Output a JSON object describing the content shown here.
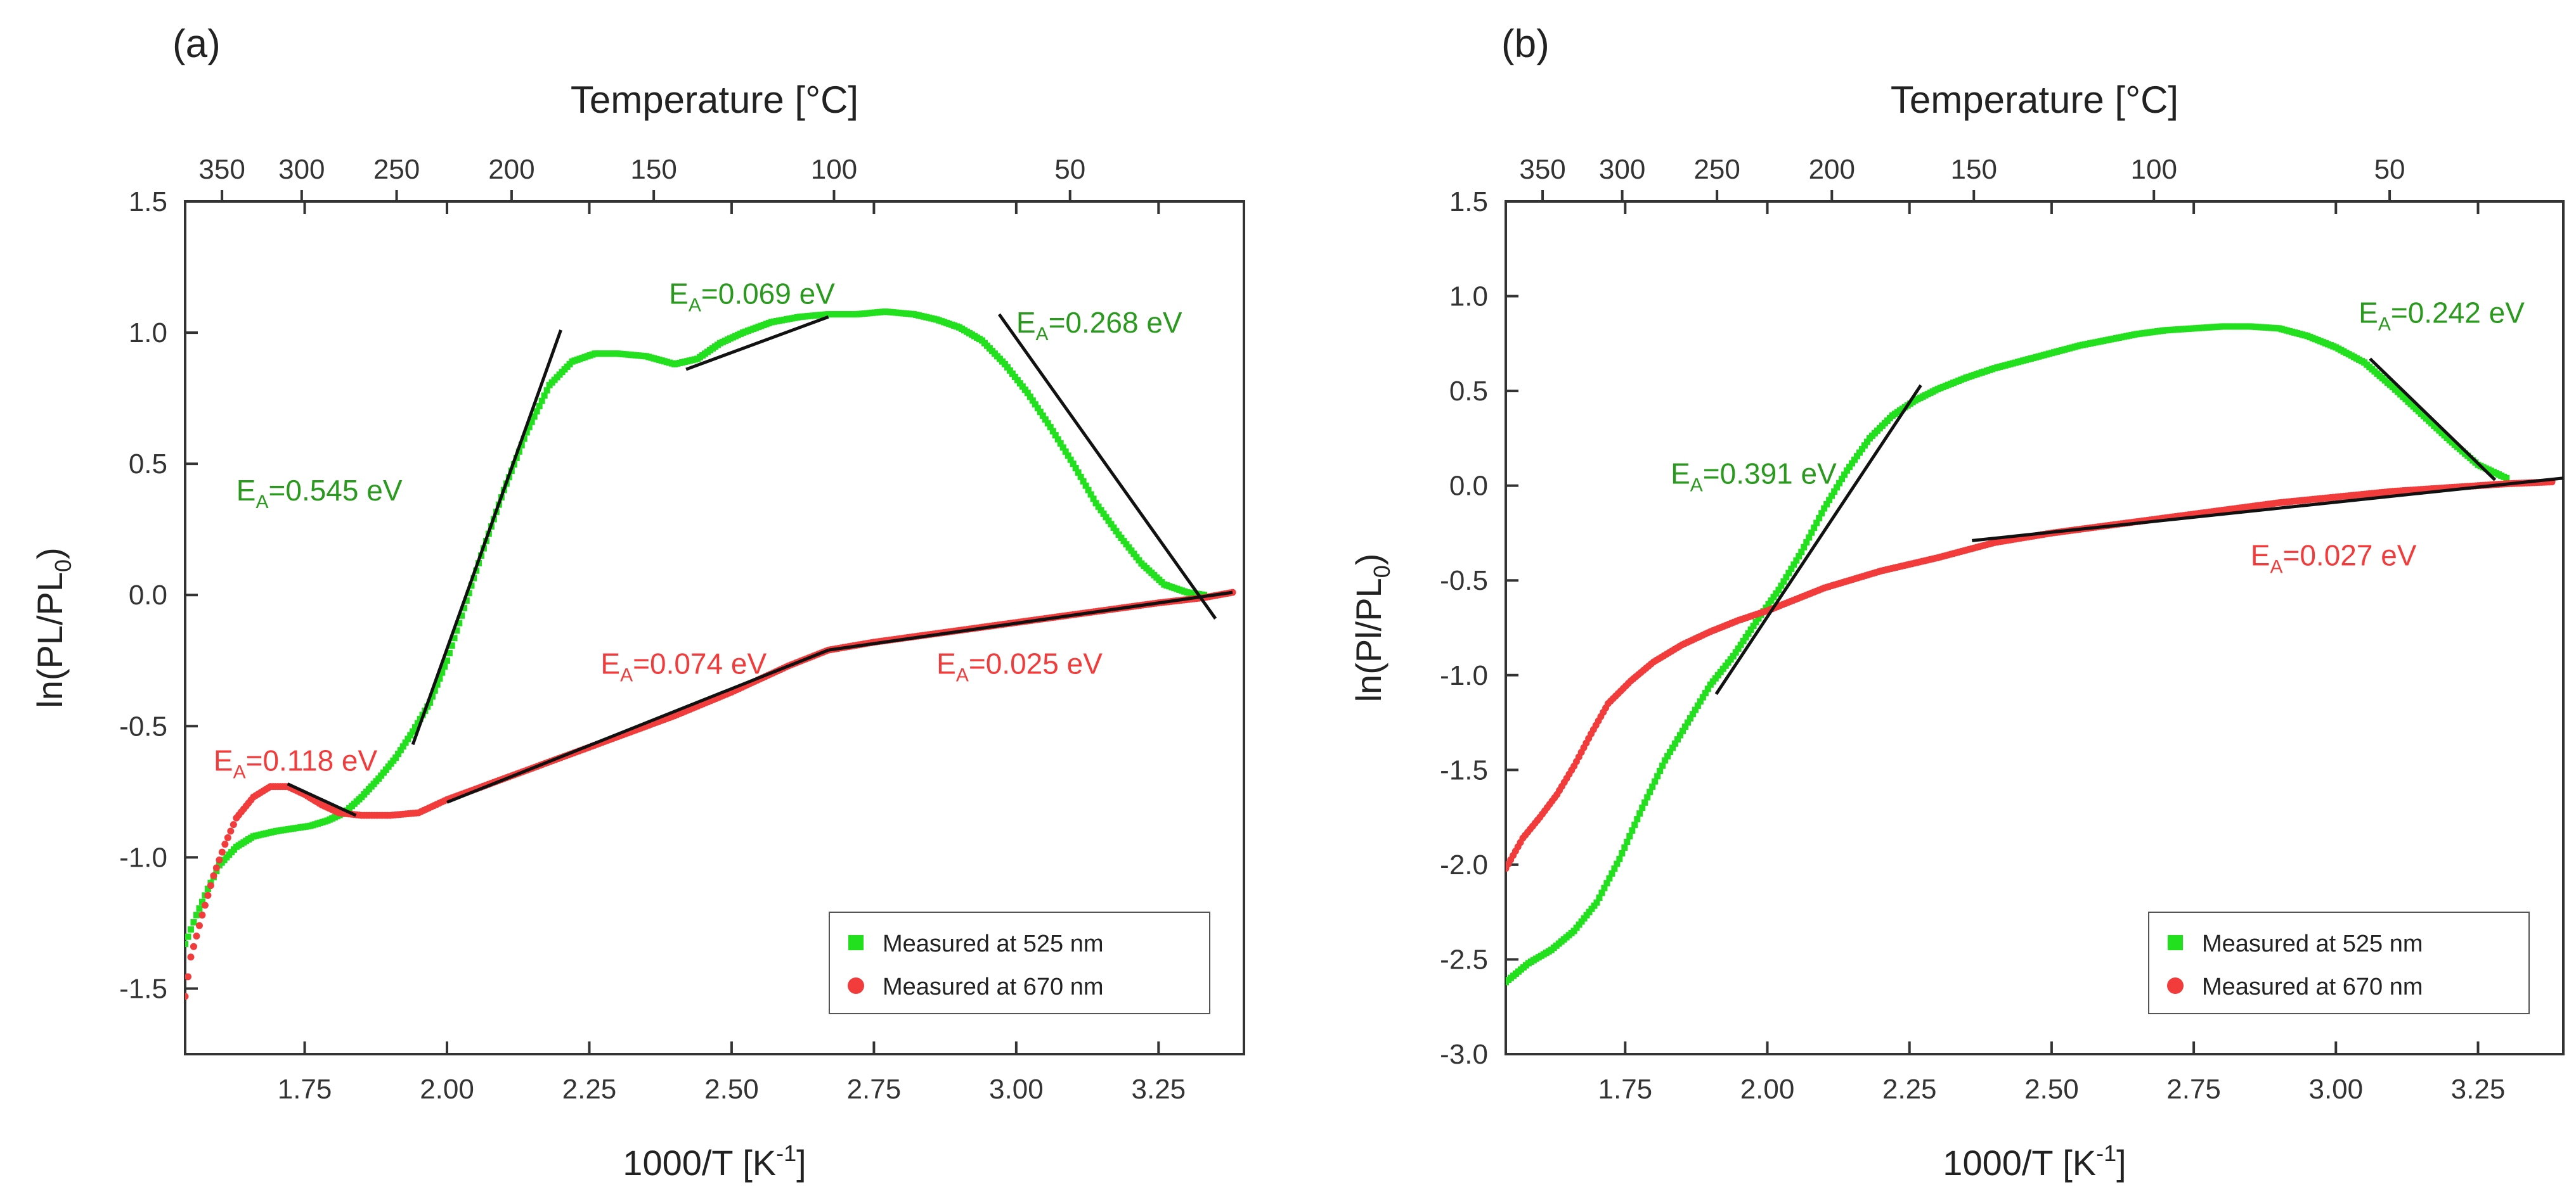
{
  "chart_data": [
    {
      "type": "scatter",
      "panel_label": "(a)",
      "xlabel": "1000/T [K",
      "xlabel_sup": "-1",
      "xlabel_end": "]",
      "ylabel": "ln(PL/PL",
      "ylabel_sub": "0",
      "ylabel_end": ")",
      "top_axis_label": "Temperature [°C]",
      "xlim": [
        1.54,
        3.4
      ],
      "ylim": [
        -1.75,
        1.5
      ],
      "xticks": [
        1.75,
        2.0,
        2.25,
        2.5,
        2.75,
        3.0,
        3.25
      ],
      "xtick_labels": [
        "1.75",
        "2.00",
        "2.25",
        "2.50",
        "2.75",
        "3.00",
        "3.25"
      ],
      "yticks": [
        -1.5,
        -1.0,
        -0.5,
        0.0,
        0.5,
        1.0,
        1.5
      ],
      "ytick_labels": [
        "-1.5",
        "-1.0",
        "-0.5",
        "0.0",
        "0.5",
        "1.0",
        "1.5"
      ],
      "top_ticks": [
        350,
        300,
        250,
        200,
        150,
        100,
        50
      ],
      "top_tick_labels": [
        "350",
        "300",
        "250",
        "200",
        "150",
        "100",
        "50"
      ],
      "legend_position": "bottom-right",
      "series": [
        {
          "name": "Measured at 525 nm",
          "color": "#22e01e",
          "marker": "square",
          "points": [
            [
              1.54,
              -1.33
            ],
            [
              1.56,
              -1.22
            ],
            [
              1.58,
              -1.12
            ],
            [
              1.6,
              -1.03
            ],
            [
              1.63,
              -0.96
            ],
            [
              1.66,
              -0.92
            ],
            [
              1.7,
              -0.9
            ],
            [
              1.73,
              -0.89
            ],
            [
              1.76,
              -0.88
            ],
            [
              1.79,
              -0.86
            ],
            [
              1.82,
              -0.83
            ],
            [
              1.85,
              -0.77
            ],
            [
              1.88,
              -0.7
            ],
            [
              1.91,
              -0.62
            ],
            [
              1.94,
              -0.52
            ],
            [
              1.97,
              -0.41
            ],
            [
              2.0,
              -0.25
            ],
            [
              2.03,
              -0.05
            ],
            [
              2.06,
              0.15
            ],
            [
              2.1,
              0.4
            ],
            [
              2.14,
              0.62
            ],
            [
              2.18,
              0.8
            ],
            [
              2.22,
              0.89
            ],
            [
              2.26,
              0.92
            ],
            [
              2.3,
              0.92
            ],
            [
              2.35,
              0.91
            ],
            [
              2.4,
              0.88
            ],
            [
              2.44,
              0.9
            ],
            [
              2.48,
              0.96
            ],
            [
              2.52,
              1.0
            ],
            [
              2.57,
              1.04
            ],
            [
              2.62,
              1.06
            ],
            [
              2.67,
              1.07
            ],
            [
              2.72,
              1.07
            ],
            [
              2.77,
              1.08
            ],
            [
              2.82,
              1.07
            ],
            [
              2.86,
              1.05
            ],
            [
              2.9,
              1.02
            ],
            [
              2.94,
              0.97
            ],
            [
              2.98,
              0.88
            ],
            [
              3.02,
              0.77
            ],
            [
              3.06,
              0.64
            ],
            [
              3.1,
              0.5
            ],
            [
              3.14,
              0.35
            ],
            [
              3.18,
              0.23
            ],
            [
              3.22,
              0.12
            ],
            [
              3.26,
              0.04
            ],
            [
              3.3,
              0.01
            ],
            [
              3.33,
              0.0
            ]
          ]
        },
        {
          "name": "Measured at 670 nm",
          "color": "#f23c3c",
          "marker": "circle",
          "points": [
            [
              1.54,
              -1.53
            ],
            [
              1.55,
              -1.38
            ],
            [
              1.57,
              -1.22
            ],
            [
              1.59,
              -1.07
            ],
            [
              1.61,
              -0.95
            ],
            [
              1.63,
              -0.85
            ],
            [
              1.66,
              -0.77
            ],
            [
              1.69,
              -0.73
            ],
            [
              1.72,
              -0.73
            ],
            [
              1.75,
              -0.76
            ],
            [
              1.78,
              -0.8
            ],
            [
              1.81,
              -0.83
            ],
            [
              1.85,
              -0.84
            ],
            [
              1.9,
              -0.84
            ],
            [
              1.95,
              -0.83
            ],
            [
              2.0,
              -0.78
            ],
            [
              2.05,
              -0.74
            ],
            [
              2.1,
              -0.7
            ],
            [
              2.2,
              -0.62
            ],
            [
              2.3,
              -0.54
            ],
            [
              2.4,
              -0.46
            ],
            [
              2.5,
              -0.37
            ],
            [
              2.6,
              -0.27
            ],
            [
              2.67,
              -0.21
            ],
            [
              2.75,
              -0.18
            ],
            [
              2.85,
              -0.15
            ],
            [
              2.95,
              -0.12
            ],
            [
              3.05,
              -0.09
            ],
            [
              3.15,
              -0.06
            ],
            [
              3.25,
              -0.03
            ],
            [
              3.33,
              -0.01
            ],
            [
              3.38,
              0.01
            ]
          ]
        }
      ],
      "fit_lines": [
        {
          "x": [
            1.94,
            2.2
          ],
          "y": [
            -0.57,
            1.01
          ]
        },
        {
          "x": [
            2.42,
            2.67
          ],
          "y": [
            0.86,
            1.06
          ]
        },
        {
          "x": [
            2.97,
            3.35
          ],
          "y": [
            1.07,
            -0.09
          ]
        },
        {
          "x": [
            1.72,
            1.84
          ],
          "y": [
            -0.72,
            -0.84
          ]
        },
        {
          "x": [
            2.0,
            2.67
          ],
          "y": [
            -0.79,
            -0.21
          ]
        },
        {
          "x": [
            2.67,
            3.38
          ],
          "y": [
            -0.21,
            0.01
          ]
        }
      ],
      "annotations": [
        {
          "prefix": "E",
          "sub": "A",
          "text": "=0.545 eV",
          "color": "#2a9a1e",
          "x": 1.63,
          "y": 0.36
        },
        {
          "prefix": "E",
          "sub": "A",
          "text": "=0.069 eV",
          "color": "#2a9a1e",
          "x": 2.39,
          "y": 1.11
        },
        {
          "prefix": "E",
          "sub": "A",
          "text": "=0.268 eV",
          "color": "#2a9a1e",
          "x": 3.0,
          "y": 1.0
        },
        {
          "prefix": "E",
          "sub": "A",
          "text": "=0.118 eV",
          "color": "#f23c3c",
          "x": 1.59,
          "y": -0.67
        },
        {
          "prefix": "E",
          "sub": "A",
          "text": "=0.074 eV",
          "color": "#f23c3c",
          "x": 2.27,
          "y": -0.3
        },
        {
          "prefix": "E",
          "sub": "A",
          "text": "=0.025 eV",
          "color": "#f23c3c",
          "x": 2.86,
          "y": -0.3
        }
      ]
    },
    {
      "type": "scatter",
      "panel_label": "(b)",
      "xlabel": "1000/T [K",
      "xlabel_sup": "-1",
      "xlabel_end": "]",
      "ylabel": "ln(Pl/PL",
      "ylabel_sub": "0",
      "ylabel_end": ")",
      "top_axis_label": "Temperature [°C]",
      "xlim": [
        1.54,
        3.4
      ],
      "ylim": [
        -3.0,
        1.5
      ],
      "xticks": [
        1.75,
        2.0,
        2.25,
        2.5,
        2.75,
        3.0,
        3.25
      ],
      "xtick_labels": [
        "1.75",
        "2.00",
        "2.25",
        "2.50",
        "2.75",
        "3.00",
        "3.25"
      ],
      "yticks": [
        -3.0,
        -2.5,
        -2.0,
        -1.5,
        -1.0,
        -0.5,
        0.0,
        0.5,
        1.0,
        1.5
      ],
      "ytick_labels": [
        "-3.0",
        "-2.5",
        "-2.0",
        "-1.5",
        "-1.0",
        "-0.5",
        "0.0",
        "0.5",
        "1.0",
        "1.5"
      ],
      "top_ticks": [
        350,
        300,
        250,
        200,
        150,
        100,
        50
      ],
      "top_tick_labels": [
        "350",
        "300",
        "250",
        "200",
        "150",
        "100",
        "50"
      ],
      "legend_position": "bottom-right",
      "series": [
        {
          "name": "Measured at 525 nm",
          "color": "#22e01e",
          "marker": "square",
          "points": [
            [
              1.54,
              -2.62
            ],
            [
              1.58,
              -2.52
            ],
            [
              1.62,
              -2.45
            ],
            [
              1.66,
              -2.35
            ],
            [
              1.7,
              -2.2
            ],
            [
              1.74,
              -1.97
            ],
            [
              1.78,
              -1.7
            ],
            [
              1.82,
              -1.45
            ],
            [
              1.86,
              -1.25
            ],
            [
              1.9,
              -1.05
            ],
            [
              1.94,
              -0.9
            ],
            [
              1.98,
              -0.72
            ],
            [
              2.02,
              -0.55
            ],
            [
              2.06,
              -0.35
            ],
            [
              2.1,
              -0.12
            ],
            [
              2.14,
              0.08
            ],
            [
              2.18,
              0.25
            ],
            [
              2.22,
              0.37
            ],
            [
              2.26,
              0.45
            ],
            [
              2.3,
              0.51
            ],
            [
              2.35,
              0.57
            ],
            [
              2.4,
              0.62
            ],
            [
              2.45,
              0.66
            ],
            [
              2.5,
              0.7
            ],
            [
              2.55,
              0.74
            ],
            [
              2.6,
              0.77
            ],
            [
              2.65,
              0.8
            ],
            [
              2.7,
              0.82
            ],
            [
              2.75,
              0.83
            ],
            [
              2.8,
              0.84
            ],
            [
              2.85,
              0.84
            ],
            [
              2.9,
              0.83
            ],
            [
              2.95,
              0.79
            ],
            [
              3.0,
              0.73
            ],
            [
              3.05,
              0.65
            ],
            [
              3.1,
              0.52
            ],
            [
              3.15,
              0.38
            ],
            [
              3.2,
              0.24
            ],
            [
              3.25,
              0.11
            ],
            [
              3.3,
              0.04
            ]
          ]
        },
        {
          "name": "Measured at 670 nm",
          "color": "#f23c3c",
          "marker": "circle",
          "points": [
            [
              1.54,
              -2.02
            ],
            [
              1.57,
              -1.86
            ],
            [
              1.6,
              -1.75
            ],
            [
              1.63,
              -1.63
            ],
            [
              1.66,
              -1.48
            ],
            [
              1.69,
              -1.31
            ],
            [
              1.72,
              -1.15
            ],
            [
              1.76,
              -1.03
            ],
            [
              1.8,
              -0.93
            ],
            [
              1.85,
              -0.84
            ],
            [
              1.9,
              -0.77
            ],
            [
              1.95,
              -0.71
            ],
            [
              2.0,
              -0.66
            ],
            [
              2.05,
              -0.6
            ],
            [
              2.1,
              -0.54
            ],
            [
              2.2,
              -0.45
            ],
            [
              2.3,
              -0.38
            ],
            [
              2.4,
              -0.3
            ],
            [
              2.5,
              -0.25
            ],
            [
              2.6,
              -0.21
            ],
            [
              2.7,
              -0.17
            ],
            [
              2.8,
              -0.13
            ],
            [
              2.9,
              -0.09
            ],
            [
              3.0,
              -0.06
            ],
            [
              3.1,
              -0.03
            ],
            [
              3.2,
              -0.01
            ],
            [
              3.3,
              0.01
            ],
            [
              3.38,
              0.02
            ]
          ]
        }
      ],
      "fit_lines": [
        {
          "x": [
            1.91,
            2.27
          ],
          "y": [
            -1.1,
            0.53
          ]
        },
        {
          "x": [
            3.06,
            3.28
          ],
          "y": [
            0.67,
            0.03
          ]
        },
        {
          "x": [
            2.36,
            3.4
          ],
          "y": [
            -0.29,
            0.04
          ]
        }
      ],
      "annotations": [
        {
          "prefix": "E",
          "sub": "A",
          "text": "=0.391 eV",
          "color": "#2a9a1e",
          "x": 1.83,
          "y": 0.01
        },
        {
          "prefix": "E",
          "sub": "A",
          "text": "=0.242 eV",
          "color": "#2a9a1e",
          "x": 3.04,
          "y": 0.86
        },
        {
          "prefix": "E",
          "sub": "A",
          "text": "=0.027 eV",
          "color": "#f23c3c",
          "x": 2.85,
          "y": -0.42
        }
      ]
    }
  ]
}
